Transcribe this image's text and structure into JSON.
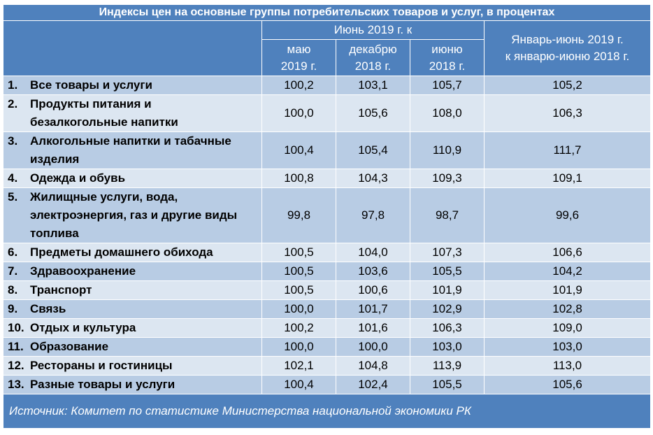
{
  "title": "Индексы цен на основные группы потребительских товаров и услуг, в процентах",
  "header": {
    "june_group": "Июнь 2019 г. к",
    "col_may": [
      "маю",
      "2019 г."
    ],
    "col_dec": [
      "декабрю",
      "2018 г."
    ],
    "col_jun": [
      "июню",
      "2018 г."
    ],
    "col_janjun": [
      "Январь-июнь 2019 г.",
      "к январю-июню 2018 г."
    ]
  },
  "rows": [
    {
      "num": "1.",
      "label": [
        "Все товары и услуги"
      ],
      "may": "100,2",
      "dec": "103,1",
      "jun": "105,7",
      "janjun": "105,2"
    },
    {
      "num": "2.",
      "label": [
        "Продукты питания и",
        "безалкогольные напитки"
      ],
      "may": "100,0",
      "dec": "105,6",
      "jun": "108,0",
      "janjun": "106,3"
    },
    {
      "num": "3.",
      "label": [
        "Алкогольные напитки и табачные",
        "изделия"
      ],
      "may": "100,4",
      "dec": "105,4",
      "jun": "110,9",
      "janjun": "111,7"
    },
    {
      "num": "4.",
      "label": [
        "Одежда и обувь"
      ],
      "may": "100,8",
      "dec": "104,3",
      "jun": "109,3",
      "janjun": "109,1"
    },
    {
      "num": "5.",
      "label": [
        "Жилищные услуги, вода,",
        "электроэнергия, газ и другие виды",
        "топлива"
      ],
      "may": "99,8",
      "dec": "97,8",
      "jun": "98,7",
      "janjun": "99,6"
    },
    {
      "num": "6.",
      "label": [
        "Предметы домашнего обихода"
      ],
      "may": "100,5",
      "dec": "104,0",
      "jun": "107,3",
      "janjun": "106,6"
    },
    {
      "num": "7.",
      "label": [
        "Здравоохранение"
      ],
      "may": "100,5",
      "dec": "103,6",
      "jun": "105,5",
      "janjun": "104,2"
    },
    {
      "num": "8.",
      "label": [
        "Транспорт"
      ],
      "may": "100,5",
      "dec": "100,6",
      "jun": "101,9",
      "janjun": "101,9"
    },
    {
      "num": "9.",
      "label": [
        "Связь"
      ],
      "may": "100,0",
      "dec": "101,7",
      "jun": "102,9",
      "janjun": "102,8"
    },
    {
      "num": "10.",
      "label": [
        "Отдых и культура"
      ],
      "may": "100,2",
      "dec": "101,6",
      "jun": "106,3",
      "janjun": "109,0"
    },
    {
      "num": "11.",
      "label": [
        "Образование"
      ],
      "may": "100,0",
      "dec": "100,0",
      "jun": "103,0",
      "janjun": "103,0"
    },
    {
      "num": "12.",
      "label": [
        "Рестораны и гостиницы"
      ],
      "may": "102,1",
      "dec": "104,8",
      "jun": "113,9",
      "janjun": "113,0"
    },
    {
      "num": "13.",
      "label": [
        "Разные товары и услуги"
      ],
      "may": "100,4",
      "dec": "102,4",
      "jun": "105,5",
      "janjun": "105,6"
    }
  ],
  "source": "Источник: Комитет по статистике Министерства национальной экономики РК",
  "colors": {
    "header": "#4f81bd",
    "row_dark": "#b8cce4",
    "row_light": "#dce6f1"
  }
}
